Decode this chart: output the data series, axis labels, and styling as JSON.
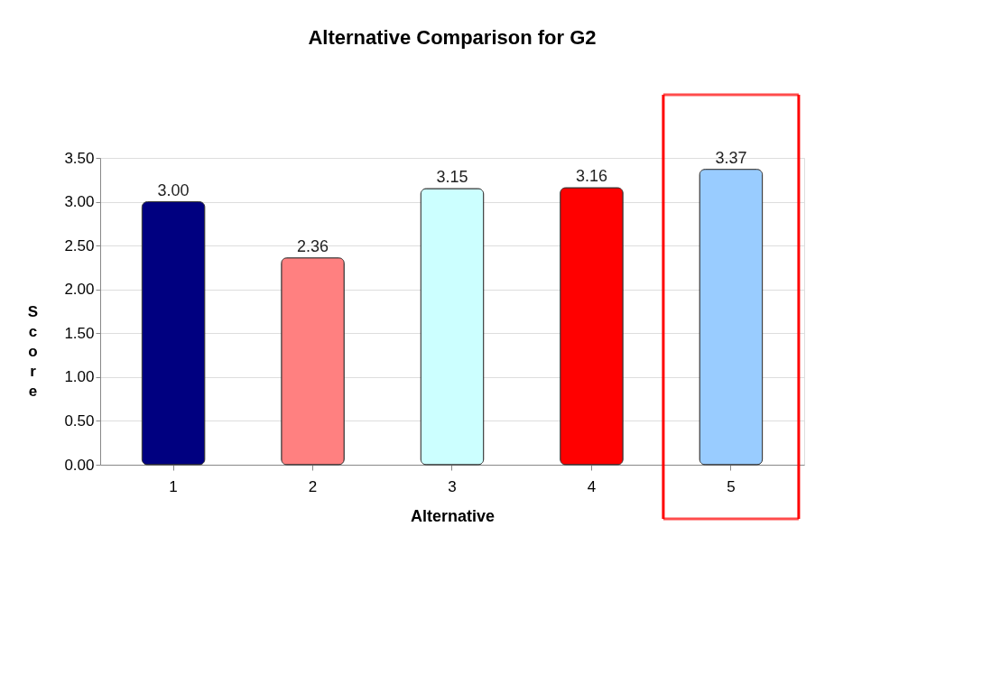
{
  "chart_data": {
    "type": "bar",
    "title": "Alternative Comparison for G2",
    "xlabel": "Alternative",
    "ylabel": "Score",
    "categories": [
      "1",
      "2",
      "3",
      "4",
      "5"
    ],
    "values": [
      3.0,
      2.36,
      3.15,
      3.16,
      3.37
    ],
    "colors": [
      "#000080",
      "#ff8080",
      "#ccffff",
      "#ff0000",
      "#99ccff"
    ],
    "value_labels": [
      "3.00",
      "2.36",
      "3.15",
      "3.16",
      "3.37"
    ],
    "ylim": [
      0,
      3.5
    ],
    "yticks": [
      {
        "value": 0,
        "label": "0.00"
      },
      {
        "value": 0.5,
        "label": "0.50"
      },
      {
        "value": 1,
        "label": "1.00"
      },
      {
        "value": 1.5,
        "label": "1.50"
      },
      {
        "value": 2,
        "label": "2.00"
      },
      {
        "value": 2.5,
        "label": "2.50"
      },
      {
        "value": 3,
        "label": "3.00"
      },
      {
        "value": 3.5,
        "label": "3.50"
      }
    ],
    "grid": "y"
  }
}
